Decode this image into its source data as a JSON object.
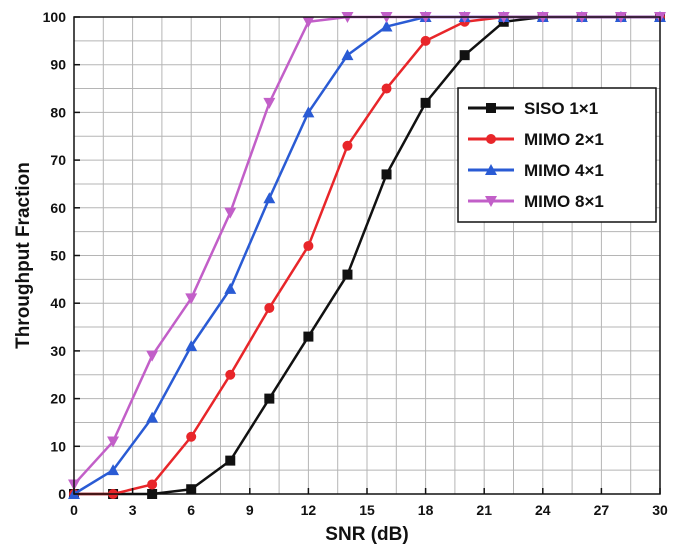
{
  "chart_data": {
    "type": "line",
    "title": "",
    "xlabel": "SNR (dB)",
    "ylabel": "Throughput Fraction",
    "xlim": [
      0,
      30
    ],
    "ylim": [
      0,
      100
    ],
    "xticks": [
      "0",
      "3",
      "6",
      "9",
      "12",
      "15",
      "18",
      "21",
      "24",
      "27",
      "30"
    ],
    "yticks": [
      "0",
      "10",
      "20",
      "30",
      "40",
      "50",
      "60",
      "70",
      "80",
      "90",
      "100"
    ],
    "grid": true,
    "legend_position": "right",
    "x": [
      0,
      2,
      4,
      6,
      8,
      10,
      12,
      14,
      16,
      18,
      20,
      22,
      24,
      26,
      28,
      30
    ],
    "series": [
      {
        "name": "SISO 1×1",
        "color": "#111111",
        "marker": "square",
        "values": [
          0,
          0,
          0,
          1,
          7,
          20,
          33,
          46,
          67,
          82,
          92,
          99,
          100,
          100,
          100,
          100
        ]
      },
      {
        "name": "MIMO 2×1",
        "color": "#e8262a",
        "marker": "circle",
        "values": [
          0,
          0,
          2,
          12,
          25,
          39,
          52,
          73,
          85,
          95,
          99,
          100,
          100,
          100,
          100,
          100
        ]
      },
      {
        "name": "MIMO 4×1",
        "color": "#2a5bd4",
        "marker": "triangle-up",
        "values": [
          0,
          5,
          16,
          31,
          43,
          62,
          80,
          92,
          98,
          100,
          100,
          100,
          100,
          100,
          100,
          100
        ]
      },
      {
        "name": "MIMO 8×1",
        "color": "#c25fc8",
        "marker": "triangle-down",
        "values": [
          2,
          11,
          29,
          41,
          59,
          82,
          99,
          100,
          100,
          100,
          100,
          100,
          100,
          100,
          100,
          100
        ]
      }
    ]
  }
}
